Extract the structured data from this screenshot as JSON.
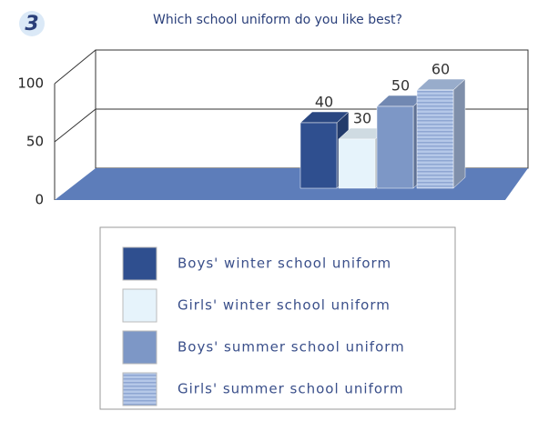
{
  "chart_data": {
    "type": "bar3d",
    "badge": "3",
    "title": "Which school uniform do you like best?",
    "series": [
      {
        "name": "Boys' winter school uniform",
        "color": "#2f4f8f",
        "values": [
          40
        ]
      },
      {
        "name": "Girls' winter school uniform",
        "color": "#e6f3fb",
        "values": [
          30
        ]
      },
      {
        "name": "Boys' summer school uniform",
        "color": "#7d97c6",
        "values": [
          50
        ]
      },
      {
        "name": "Girls' summer school uniform",
        "color": "#a9bfe2",
        "values": [
          60
        ]
      }
    ],
    "ylim": [
      0,
      100
    ],
    "yticks": [
      0,
      50,
      100
    ],
    "grid": true
  }
}
